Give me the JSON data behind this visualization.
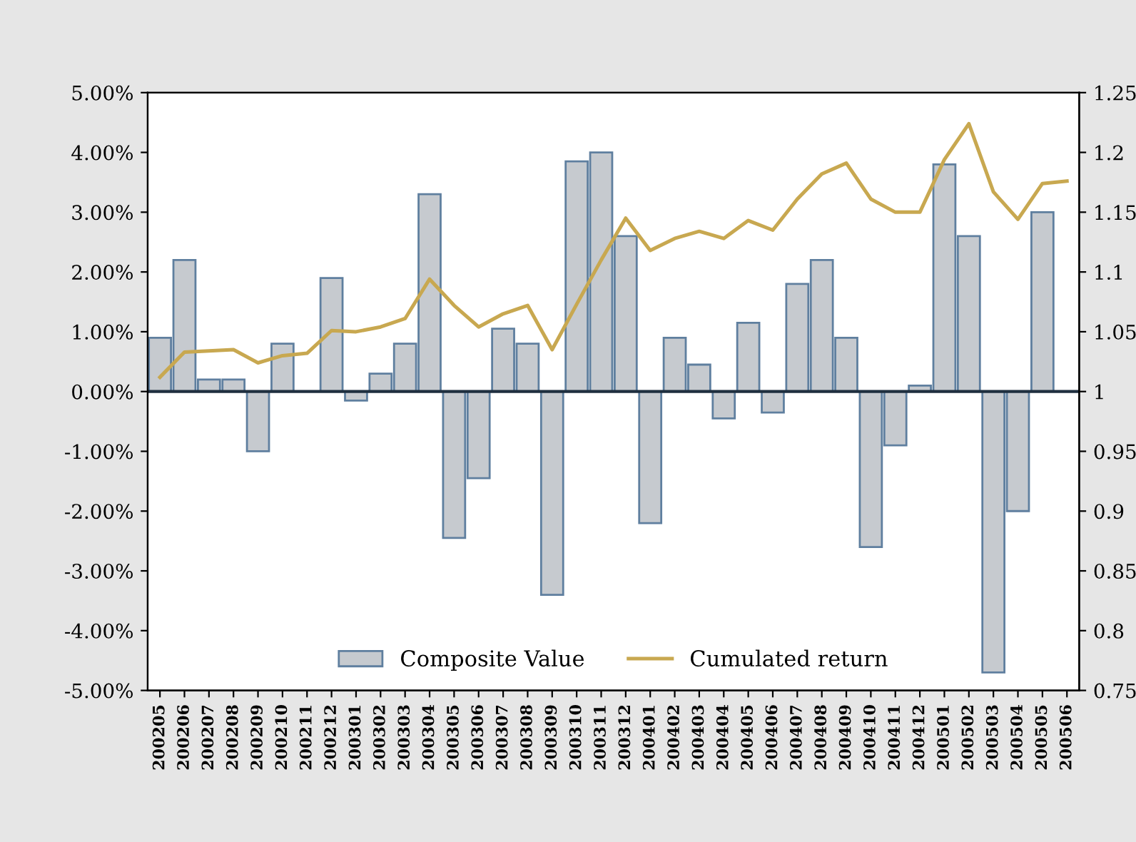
{
  "chart_data": {
    "type": "bar",
    "categories": [
      "200205",
      "200206",
      "200207",
      "200208",
      "200209",
      "200210",
      "200211",
      "200212",
      "200301",
      "200302",
      "200303",
      "200304",
      "200305",
      "200306",
      "200307",
      "200308",
      "200309",
      "200310",
      "200311",
      "200312",
      "200401",
      "200402",
      "200403",
      "200404",
      "200405",
      "200406",
      "200407",
      "200408",
      "200409",
      "200410",
      "200411",
      "200412",
      "200501",
      "200502",
      "200503",
      "200504",
      "200505",
      "200506"
    ],
    "series": [
      {
        "name": "Composite Value",
        "color": "#c6cacf",
        "values": [
          0.9,
          2.2,
          0.2,
          0.2,
          -1.0,
          0.8,
          null,
          1.9,
          -0.15,
          0.3,
          0.8,
          3.3,
          -2.45,
          -1.45,
          1.05,
          0.8,
          -3.4,
          3.85,
          4.0,
          2.6,
          -2.2,
          0.9,
          0.45,
          -0.45,
          1.15,
          -0.35,
          1.8,
          2.2,
          0.9,
          -2.6,
          -0.9,
          0.1,
          3.8,
          2.6,
          -4.7,
          -2.0,
          3.0,
          null
        ]
      },
      {
        "name": "Cumulated return",
        "type": "line",
        "axis": "y2",
        "color": "#c8a850",
        "values": [
          1.012,
          1.033,
          1.034,
          1.035,
          1.024,
          1.03,
          1.032,
          1.051,
          1.05,
          1.054,
          1.061,
          1.094,
          1.072,
          1.054,
          1.065,
          1.072,
          1.035,
          1.073,
          1.11,
          1.145,
          1.118,
          1.128,
          1.134,
          1.128,
          1.143,
          1.135,
          1.161,
          1.182,
          1.191,
          1.161,
          1.15,
          1.15,
          1.194,
          1.224,
          1.167,
          1.144,
          1.174,
          1.176
        ]
      }
    ],
    "ylim": [
      -5,
      5
    ],
    "yticks": [
      {
        "value": -5,
        "label": "-5.00%"
      },
      {
        "value": -4,
        "label": "-4.00%"
      },
      {
        "value": -3,
        "label": "-3.00%"
      },
      {
        "value": -2,
        "label": "-2.00%"
      },
      {
        "value": -1,
        "label": "-1.00%"
      },
      {
        "value": 0,
        "label": "0.00%"
      },
      {
        "value": 1,
        "label": "1.00%"
      },
      {
        "value": 2,
        "label": "2.00%"
      },
      {
        "value": 3,
        "label": "3.00%"
      },
      {
        "value": 4,
        "label": "4.00%"
      },
      {
        "value": 5,
        "label": "5.00%"
      }
    ],
    "y2lim": [
      0.75,
      1.25
    ],
    "y2ticks": [
      0.75,
      0.8,
      0.85,
      0.9,
      0.95,
      1,
      1.05,
      1.1,
      1.15,
      1.2,
      1.25
    ],
    "ref_lines": [
      {
        "axis": "y",
        "value": 0,
        "color": "#1f2f3f"
      }
    ],
    "grid": false,
    "legend": "bottom"
  }
}
